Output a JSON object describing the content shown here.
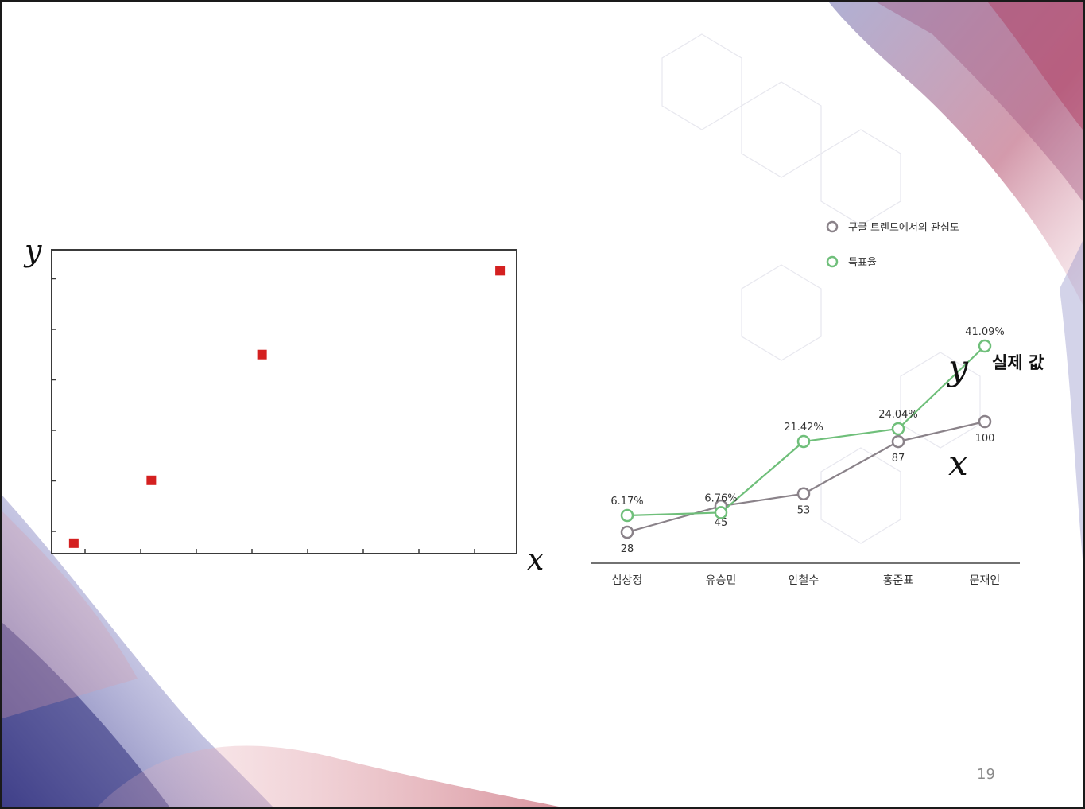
{
  "colors": {
    "scatter_marker": "#d42020",
    "interest_series": "#8a8289",
    "vote_series": "#6fbf7a",
    "border": "#1a1a1a",
    "background_purple": "#5a5a9a",
    "background_red": "#b0405e"
  },
  "page_number": "19",
  "chart_data": [
    {
      "type": "scatter",
      "xlabel": "x",
      "ylabel": "y",
      "axis_tick_labels": "none",
      "grid": false,
      "points": [
        {
          "x": 0.4,
          "y": 0.2
        },
        {
          "x": 1.8,
          "y": 1.4
        },
        {
          "x": 3.8,
          "y": 3.8
        },
        {
          "x": 8.1,
          "y": 5.4
        }
      ],
      "xlim": [
        0,
        8.4
      ],
      "ylim": [
        0,
        5.8
      ]
    },
    {
      "type": "line",
      "categories": [
        "심상정",
        "유승민",
        "안철수",
        "홍준표",
        "문재인"
      ],
      "legend_position": "top-right",
      "series": [
        {
          "name": "구글 트렌드에서의 관심도",
          "values": [
            28,
            45,
            53,
            87,
            100
          ],
          "labels": [
            "28",
            "45",
            "53",
            "87",
            "100"
          ]
        },
        {
          "name": "득표율",
          "values": [
            6.17,
            6.76,
            21.42,
            24.04,
            41.09
          ],
          "labels": [
            "6.17%",
            "6.76%",
            "21.42%",
            "24.04%",
            "41.09%"
          ]
        }
      ],
      "annotations": {
        "y_symbol": "y",
        "y_text": "실제 값",
        "x_symbol": "x"
      }
    }
  ]
}
